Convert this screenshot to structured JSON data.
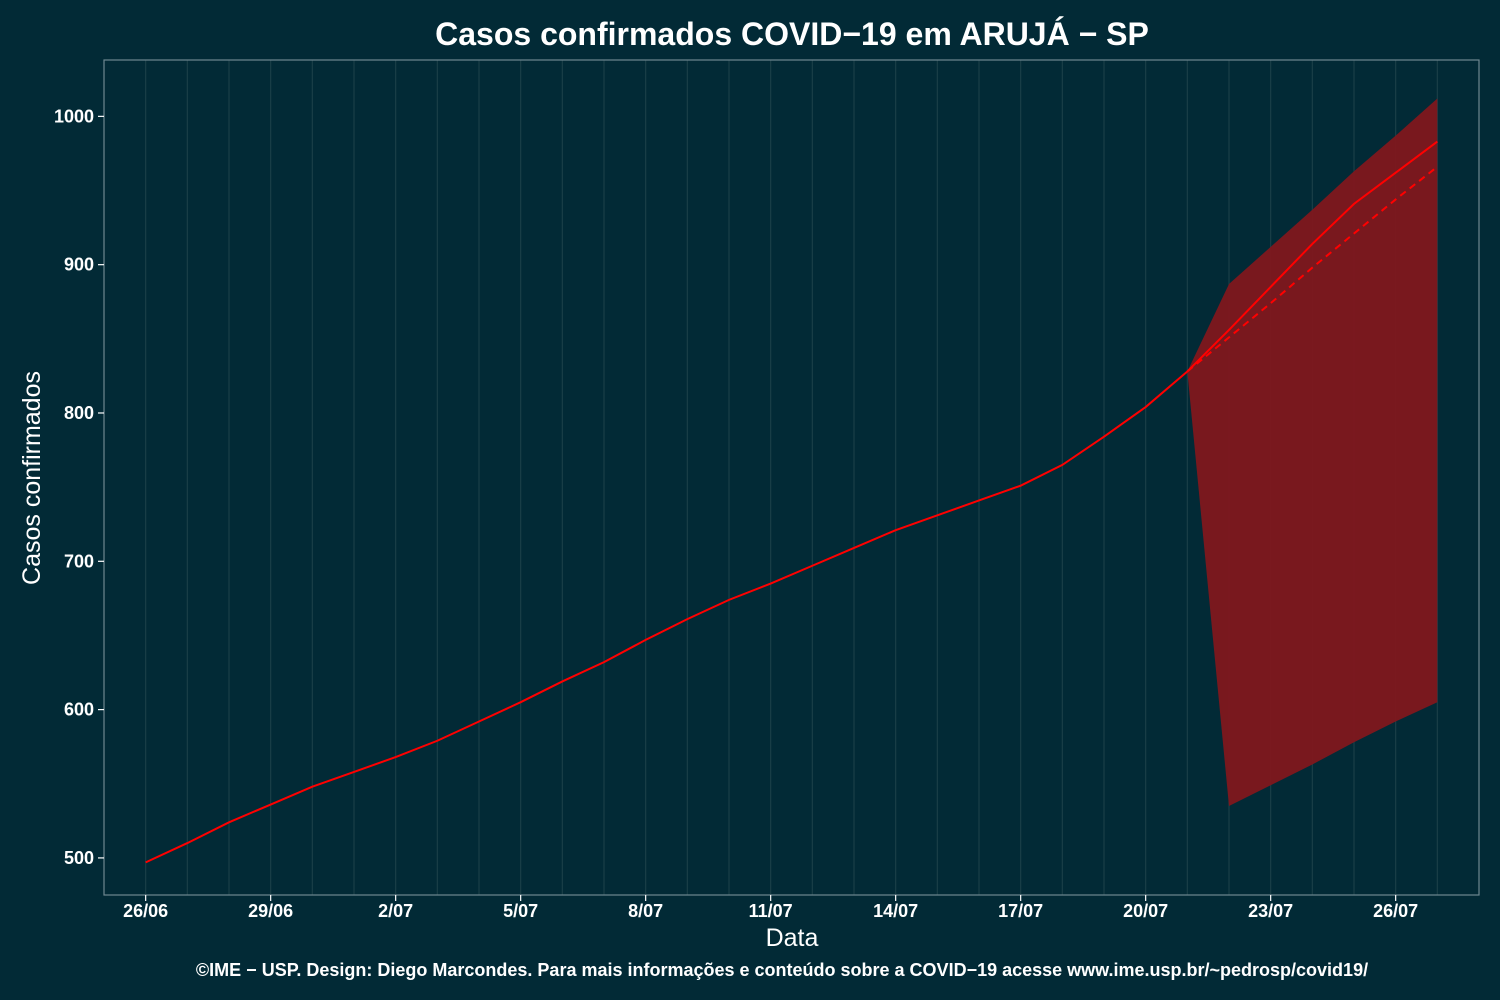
{
  "chart_data": {
    "type": "line",
    "title": "Casos confirmados COVID−19 em ARUJÁ − SP",
    "xlabel": "Data",
    "ylabel": "Casos confirmados",
    "footer": "©IME − USP. Design: Diego Marcondes. Para mais informações e conteúdo sobre a COVID−19 acesse www.ime.usp.br/~pedrosp/covid19/",
    "xlim": [
      "2020-06-25",
      "2020-07-28"
    ],
    "ylim": [
      475,
      1038
    ],
    "grid": true,
    "x_ticks": [
      {
        "date": "2020-06-26",
        "label": "26/06"
      },
      {
        "date": "2020-06-29",
        "label": "29/06"
      },
      {
        "date": "2020-07-02",
        "label": "2/07"
      },
      {
        "date": "2020-07-05",
        "label": "5/07"
      },
      {
        "date": "2020-07-08",
        "label": "8/07"
      },
      {
        "date": "2020-07-11",
        "label": "11/07"
      },
      {
        "date": "2020-07-14",
        "label": "14/07"
      },
      {
        "date": "2020-07-17",
        "label": "17/07"
      },
      {
        "date": "2020-07-20",
        "label": "20/07"
      },
      {
        "date": "2020-07-23",
        "label": "23/07"
      },
      {
        "date": "2020-07-26",
        "label": "26/07"
      }
    ],
    "y_ticks": [
      500,
      600,
      700,
      800,
      900,
      1000
    ],
    "colors": {
      "background": "#022a36",
      "line": "#ff0000",
      "band": "#7f171d",
      "grid": "#1a3f48",
      "frame": "#6f8790"
    },
    "observed": {
      "x": [
        "2020-06-26",
        "2020-06-27",
        "2020-06-28",
        "2020-06-29",
        "2020-06-30",
        "2020-07-01",
        "2020-07-02",
        "2020-07-03",
        "2020-07-04",
        "2020-07-05",
        "2020-07-06",
        "2020-07-07",
        "2020-07-08",
        "2020-07-09",
        "2020-07-10",
        "2020-07-11",
        "2020-07-12",
        "2020-07-13",
        "2020-07-14",
        "2020-07-15",
        "2020-07-16",
        "2020-07-17",
        "2020-07-18",
        "2020-07-19",
        "2020-07-20",
        "2020-07-21"
      ],
      "y": [
        497,
        510,
        524,
        536,
        548,
        558,
        568,
        579,
        592,
        605,
        619,
        632,
        647,
        661,
        674,
        685,
        697,
        709,
        721,
        731,
        741,
        751,
        765,
        784,
        804,
        828
      ]
    },
    "forecast": {
      "x": [
        "2020-07-21",
        "2020-07-22",
        "2020-07-23",
        "2020-07-24",
        "2020-07-25",
        "2020-07-26",
        "2020-07-27"
      ],
      "y": [
        828,
        856,
        885,
        914,
        941,
        962,
        983
      ]
    },
    "forecast_alt": {
      "x": [
        "2020-07-21",
        "2020-07-22",
        "2020-07-23",
        "2020-07-24",
        "2020-07-25",
        "2020-07-26",
        "2020-07-27"
      ],
      "y": [
        828,
        851,
        874,
        898,
        921,
        944,
        966
      ]
    },
    "band": {
      "x": [
        "2020-07-21",
        "2020-07-22",
        "2020-07-23",
        "2020-07-24",
        "2020-07-25",
        "2020-07-26",
        "2020-07-27"
      ],
      "lower": [
        828,
        535,
        549,
        563,
        578,
        592,
        605
      ],
      "upper": [
        828,
        887,
        912,
        937,
        963,
        987,
        1012
      ]
    }
  }
}
